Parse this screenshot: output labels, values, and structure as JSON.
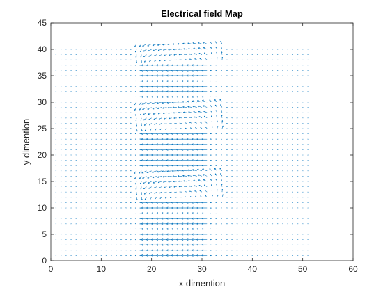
{
  "chart_data": {
    "type": "quiver",
    "title": "Electrical field Map",
    "xlabel": "x dimention",
    "ylabel": "y dimention",
    "xlim": [
      0,
      60
    ],
    "ylim": [
      0,
      45
    ],
    "xticks": [
      0,
      10,
      20,
      30,
      40,
      50,
      60
    ],
    "yticks": [
      0,
      5,
      10,
      15,
      20,
      25,
      30,
      35,
      40,
      45
    ],
    "grid": false,
    "legend": "none",
    "arrow_color": "#0072BD",
    "field": {
      "x_range": [
        1,
        51
      ],
      "y_range": [
        1,
        41
      ],
      "spacing": 1,
      "strong_band": {
        "x_from": 19,
        "x_to": 31,
        "direction": "-x"
      },
      "vortex_regions": [
        {
          "x_from": 17,
          "x_to": 34,
          "y_from": 25,
          "y_to": 30
        },
        {
          "x_from": 17,
          "x_to": 34,
          "y_from": 12,
          "y_to": 17
        },
        {
          "x_from": 17,
          "x_to": 34,
          "y_from": 38,
          "y_to": 41
        }
      ]
    }
  }
}
